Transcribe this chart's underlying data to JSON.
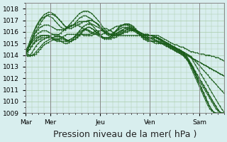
{
  "background_color": "#d8eeee",
  "plot_bg_color": "#d8eeee",
  "grid_color": "#aaccaa",
  "line_color": "#1a5c1a",
  "ylim": [
    1009,
    1018.5
  ],
  "yticks": [
    1009,
    1010,
    1011,
    1012,
    1013,
    1014,
    1015,
    1016,
    1017,
    1018
  ],
  "xlabel": "Pression niveau de la mer( hPa )",
  "xlabel_fontsize": 9,
  "day_labels": [
    "Mar",
    "Mer",
    "Jeu",
    "Ven",
    "Sam"
  ],
  "day_positions": [
    0,
    24,
    72,
    120,
    168
  ],
  "xlim": [
    0,
    192
  ],
  "title": "",
  "lines": [
    [
      1014.2,
      1014.3,
      1014.5,
      1014.8,
      1015.0,
      1015.2,
      1015.3,
      1015.4,
      1015.5,
      1015.5,
      1015.5,
      1015.5,
      1015.5,
      1015.4,
      1015.3,
      1015.2,
      1015.2,
      1015.2,
      1015.2,
      1015.2,
      1015.2,
      1015.3,
      1015.4,
      1015.5,
      1015.6,
      1015.7,
      1015.7,
      1015.8,
      1015.8,
      1015.8,
      1015.8,
      1015.8,
      1015.9,
      1016.0,
      1016.1,
      1016.1,
      1016.1,
      1016.1,
      1016.0,
      1015.9,
      1015.8,
      1015.8,
      1015.7,
      1015.7,
      1015.7,
      1015.7,
      1015.7,
      1015.7,
      1015.7,
      1015.7,
      1015.7,
      1015.7,
      1015.7,
      1015.7,
      1015.7,
      1015.7,
      1015.7,
      1015.7,
      1015.7,
      1015.7,
      1015.7,
      1015.7,
      1015.7,
      1015.7,
      1015.7,
      1015.6,
      1015.5,
      1015.4,
      1015.3,
      1015.2,
      1015.1,
      1015.0,
      1014.9,
      1014.9,
      1014.8,
      1014.7,
      1014.7,
      1014.6,
      1014.5,
      1014.4,
      1014.3,
      1014.3,
      1014.2,
      1014.2,
      1014.1,
      1014.1,
      1014.1,
      1014.0,
      1014.0,
      1014.0,
      1013.9,
      1013.9,
      1013.8,
      1013.8,
      1013.7,
      1013.6,
      1013.5
    ],
    [
      1014.2,
      1014.1,
      1014.0,
      1014.0,
      1014.0,
      1014.1,
      1014.3,
      1014.5,
      1014.7,
      1014.9,
      1015.0,
      1015.1,
      1015.2,
      1015.3,
      1015.3,
      1015.3,
      1015.3,
      1015.2,
      1015.1,
      1015.0,
      1015.0,
      1015.1,
      1015.2,
      1015.4,
      1015.6,
      1015.8,
      1016.0,
      1016.1,
      1016.2,
      1016.2,
      1016.2,
      1016.1,
      1016.0,
      1015.9,
      1015.8,
      1015.7,
      1015.6,
      1015.5,
      1015.4,
      1015.4,
      1015.4,
      1015.4,
      1015.5,
      1015.5,
      1015.6,
      1015.7,
      1015.8,
      1015.9,
      1016.0,
      1016.0,
      1016.1,
      1016.1,
      1016.1,
      1016.1,
      1016.1,
      1016.0,
      1015.9,
      1015.8,
      1015.8,
      1015.8,
      1015.7,
      1015.7,
      1015.6,
      1015.5,
      1015.4,
      1015.3,
      1015.2,
      1015.1,
      1015.0,
      1014.9,
      1014.8,
      1014.7,
      1014.6,
      1014.5,
      1014.4,
      1014.3,
      1014.2,
      1014.1,
      1014.0,
      1013.9,
      1013.8,
      1013.7,
      1013.6,
      1013.5,
      1013.4,
      1013.3,
      1013.2,
      1013.1,
      1013.0,
      1012.9,
      1012.8,
      1012.7,
      1012.6,
      1012.5,
      1012.4,
      1012.3,
      1012.2
    ],
    [
      1014.3,
      1014.5,
      1014.8,
      1015.1,
      1015.3,
      1015.5,
      1015.6,
      1015.7,
      1015.7,
      1015.7,
      1015.7,
      1015.7,
      1015.6,
      1015.5,
      1015.4,
      1015.4,
      1015.4,
      1015.5,
      1015.6,
      1015.7,
      1015.8,
      1015.8,
      1015.8,
      1015.8,
      1015.8,
      1015.8,
      1015.8,
      1015.8,
      1015.7,
      1015.7,
      1015.7,
      1015.7,
      1015.7,
      1015.8,
      1015.9,
      1016.0,
      1016.1,
      1016.2,
      1016.3,
      1016.3,
      1016.2,
      1016.1,
      1016.0,
      1015.9,
      1015.8,
      1015.8,
      1015.8,
      1015.9,
      1016.0,
      1016.0,
      1016.1,
      1016.1,
      1016.1,
      1016.1,
      1016.1,
      1016.0,
      1015.9,
      1015.8,
      1015.8,
      1015.8,
      1015.7,
      1015.7,
      1015.6,
      1015.5,
      1015.4,
      1015.3,
      1015.2,
      1015.1,
      1015.0,
      1014.9,
      1014.8,
      1014.7,
      1014.6,
      1014.5,
      1014.4,
      1014.3,
      1014.2,
      1014.1,
      1014.0,
      1013.9,
      1013.8,
      1013.7,
      1013.6,
      1013.5,
      1013.4,
      1013.3,
      1013.2,
      1013.1,
      1013.0,
      1012.9,
      1012.8,
      1012.7,
      1012.6,
      1012.5,
      1012.4,
      1012.3,
      1012.2
    ],
    [
      1014.1,
      1014.0,
      1013.9,
      1014.0,
      1014.1,
      1014.3,
      1014.5,
      1014.7,
      1014.9,
      1015.1,
      1015.2,
      1015.3,
      1015.4,
      1015.5,
      1015.6,
      1015.6,
      1015.6,
      1015.6,
      1015.5,
      1015.4,
      1015.3,
      1015.2,
      1015.2,
      1015.3,
      1015.4,
      1015.6,
      1015.8,
      1016.0,
      1016.2,
      1016.3,
      1016.4,
      1016.4,
      1016.3,
      1016.2,
      1016.0,
      1015.9,
      1015.7,
      1015.6,
      1015.5,
      1015.5,
      1015.5,
      1015.5,
      1015.6,
      1015.7,
      1015.8,
      1015.9,
      1016.0,
      1016.1,
      1016.1,
      1016.2,
      1016.2,
      1016.2,
      1016.2,
      1016.2,
      1016.1,
      1016.0,
      1015.9,
      1015.8,
      1015.7,
      1015.7,
      1015.7,
      1015.7,
      1015.7,
      1015.6,
      1015.5,
      1015.4,
      1015.3,
      1015.2,
      1015.1,
      1015.0,
      1014.9,
      1014.8,
      1014.7,
      1014.6,
      1014.5,
      1014.4,
      1014.3,
      1014.2,
      1014.1,
      1014.0,
      1013.9,
      1013.7,
      1013.5,
      1013.3,
      1013.1,
      1012.9,
      1012.7,
      1012.5,
      1012.3,
      1012.1,
      1011.9,
      1011.7,
      1011.5,
      1011.3,
      1011.1,
      1010.9,
      1010.7
    ],
    [
      1014.2,
      1014.3,
      1014.5,
      1014.8,
      1015.1,
      1015.3,
      1015.5,
      1015.6,
      1015.7,
      1015.7,
      1015.7,
      1015.7,
      1015.6,
      1015.5,
      1015.4,
      1015.4,
      1015.4,
      1015.4,
      1015.4,
      1015.3,
      1015.2,
      1015.2,
      1015.2,
      1015.3,
      1015.4,
      1015.5,
      1015.7,
      1015.9,
      1016.1,
      1016.3,
      1016.4,
      1016.4,
      1016.3,
      1016.2,
      1016.0,
      1015.8,
      1015.7,
      1015.5,
      1015.5,
      1015.5,
      1015.5,
      1015.6,
      1015.7,
      1015.8,
      1015.9,
      1016.0,
      1016.1,
      1016.2,
      1016.3,
      1016.3,
      1016.3,
      1016.3,
      1016.2,
      1016.1,
      1016.0,
      1015.9,
      1015.8,
      1015.7,
      1015.6,
      1015.5,
      1015.5,
      1015.5,
      1015.5,
      1015.5,
      1015.5,
      1015.4,
      1015.3,
      1015.2,
      1015.1,
      1015.0,
      1014.9,
      1014.8,
      1014.7,
      1014.6,
      1014.5,
      1014.4,
      1014.3,
      1014.2,
      1014.1,
      1014.0,
      1013.8,
      1013.5,
      1013.2,
      1012.9,
      1012.6,
      1012.3,
      1012.0,
      1011.7,
      1011.4,
      1011.1,
      1010.8,
      1010.5,
      1010.2,
      1009.9,
      1009.6,
      1009.3,
      1009.1
    ],
    [
      1014.0,
      1013.9,
      1014.0,
      1014.2,
      1014.5,
      1014.8,
      1015.0,
      1015.2,
      1015.3,
      1015.4,
      1015.5,
      1015.6,
      1015.7,
      1015.8,
      1015.8,
      1015.8,
      1015.7,
      1015.6,
      1015.5,
      1015.4,
      1015.3,
      1015.3,
      1015.4,
      1015.5,
      1015.7,
      1015.9,
      1016.1,
      1016.3,
      1016.5,
      1016.6,
      1016.7,
      1016.7,
      1016.6,
      1016.4,
      1016.2,
      1016.0,
      1015.8,
      1015.6,
      1015.5,
      1015.5,
      1015.5,
      1015.6,
      1015.7,
      1015.8,
      1015.9,
      1016.0,
      1016.1,
      1016.2,
      1016.3,
      1016.3,
      1016.3,
      1016.2,
      1016.1,
      1016.0,
      1015.9,
      1015.8,
      1015.7,
      1015.6,
      1015.5,
      1015.5,
      1015.5,
      1015.5,
      1015.4,
      1015.3,
      1015.2,
      1015.1,
      1015.0,
      1014.9,
      1014.8,
      1014.7,
      1014.6,
      1014.5,
      1014.4,
      1014.3,
      1014.2,
      1014.1,
      1014.0,
      1013.9,
      1013.7,
      1013.5,
      1013.2,
      1012.9,
      1012.6,
      1012.3,
      1012.0,
      1011.7,
      1011.4,
      1011.1,
      1010.8,
      1010.5,
      1010.2,
      1009.9,
      1009.6,
      1009.3,
      1009.1,
      1009.0,
      1009.0
    ],
    [
      1014.3,
      1014.5,
      1014.8,
      1015.2,
      1015.5,
      1015.7,
      1015.9,
      1016.0,
      1016.1,
      1016.1,
      1016.1,
      1016.0,
      1015.9,
      1015.8,
      1015.7,
      1015.7,
      1015.8,
      1015.9,
      1016.1,
      1016.2,
      1016.4,
      1016.5,
      1016.6,
      1016.6,
      1016.6,
      1016.6,
      1016.5,
      1016.4,
      1016.3,
      1016.2,
      1016.1,
      1016.0,
      1015.9,
      1015.8,
      1015.8,
      1015.8,
      1015.8,
      1015.8,
      1015.9,
      1016.0,
      1016.1,
      1016.2,
      1016.3,
      1016.4,
      1016.5,
      1016.5,
      1016.6,
      1016.6,
      1016.6,
      1016.6,
      1016.5,
      1016.4,
      1016.3,
      1016.1,
      1016.0,
      1015.8,
      1015.7,
      1015.6,
      1015.5,
      1015.4,
      1015.4,
      1015.5,
      1015.5,
      1015.5,
      1015.5,
      1015.4,
      1015.3,
      1015.2,
      1015.1,
      1015.0,
      1014.9,
      1014.8,
      1014.7,
      1014.6,
      1014.5,
      1014.4,
      1014.3,
      1014.1,
      1013.9,
      1013.6,
      1013.3,
      1013.0,
      1012.6,
      1012.3,
      1012.0,
      1011.7,
      1011.4,
      1011.1,
      1010.8,
      1010.5,
      1010.2,
      1009.9,
      1009.6,
      1009.3,
      1009.1,
      1009.0,
      1009.0
    ],
    [
      1014.4,
      1014.7,
      1015.0,
      1015.4,
      1015.7,
      1016.0,
      1016.2,
      1016.4,
      1016.5,
      1016.6,
      1016.6,
      1016.6,
      1016.5,
      1016.4,
      1016.3,
      1016.2,
      1016.2,
      1016.2,
      1016.2,
      1016.2,
      1016.3,
      1016.4,
      1016.5,
      1016.6,
      1016.7,
      1016.8,
      1016.9,
      1016.9,
      1016.9,
      1016.9,
      1016.9,
      1016.8,
      1016.7,
      1016.6,
      1016.5,
      1016.4,
      1016.3,
      1016.2,
      1016.1,
      1016.0,
      1015.9,
      1015.8,
      1015.7,
      1015.7,
      1015.7,
      1015.8,
      1015.9,
      1016.0,
      1016.1,
      1016.2,
      1016.3,
      1016.3,
      1016.3,
      1016.2,
      1016.1,
      1016.0,
      1015.9,
      1015.8,
      1015.7,
      1015.6,
      1015.5,
      1015.4,
      1015.3,
      1015.2,
      1015.1,
      1015.0,
      1015.0,
      1015.0,
      1015.0,
      1014.9,
      1014.8,
      1014.7,
      1014.6,
      1014.5,
      1014.4,
      1014.3,
      1014.2,
      1014.0,
      1013.8,
      1013.5,
      1013.2,
      1012.9,
      1012.5,
      1012.1,
      1011.8,
      1011.5,
      1011.2,
      1010.9,
      1010.6,
      1010.3,
      1010.0,
      1009.7,
      1009.4,
      1009.2,
      1009.1,
      1009.0,
      1009.0
    ],
    [
      1014.2,
      1014.5,
      1014.9,
      1015.3,
      1015.7,
      1016.1,
      1016.4,
      1016.7,
      1017.0,
      1017.2,
      1017.4,
      1017.5,
      1017.5,
      1017.5,
      1017.4,
      1017.3,
      1017.1,
      1016.9,
      1016.7,
      1016.5,
      1016.4,
      1016.3,
      1016.3,
      1016.4,
      1016.5,
      1016.6,
      1016.7,
      1016.8,
      1016.9,
      1016.9,
      1017.0,
      1017.0,
      1017.0,
      1016.9,
      1016.8,
      1016.7,
      1016.5,
      1016.3,
      1016.1,
      1015.9,
      1015.8,
      1015.8,
      1015.9,
      1016.0,
      1016.1,
      1016.2,
      1016.3,
      1016.4,
      1016.4,
      1016.4,
      1016.4,
      1016.3,
      1016.2,
      1016.1,
      1016.0,
      1015.8,
      1015.7,
      1015.6,
      1015.5,
      1015.4,
      1015.3,
      1015.2,
      1015.1,
      1015.0,
      1015.0,
      1015.0,
      1015.0,
      1015.0,
      1014.9,
      1014.8,
      1014.7,
      1014.6,
      1014.5,
      1014.4,
      1014.3,
      1014.2,
      1014.1,
      1013.9,
      1013.7,
      1013.4,
      1013.1,
      1012.8,
      1012.4,
      1012.0,
      1011.6,
      1011.2,
      1010.8,
      1010.4,
      1010.0,
      1009.6,
      1009.3,
      1009.1,
      1009.0,
      1009.0,
      1009.0,
      1009.0,
      1009.0
    ],
    [
      1014.3,
      1014.7,
      1015.2,
      1015.7,
      1016.1,
      1016.5,
      1016.8,
      1017.1,
      1017.3,
      1017.5,
      1017.6,
      1017.7,
      1017.7,
      1017.6,
      1017.5,
      1017.3,
      1017.1,
      1016.9,
      1016.7,
      1016.5,
      1016.4,
      1016.4,
      1016.5,
      1016.6,
      1016.8,
      1017.0,
      1017.2,
      1017.3,
      1017.4,
      1017.4,
      1017.3,
      1017.2,
      1017.1,
      1016.9,
      1016.8,
      1016.6,
      1016.4,
      1016.2,
      1016.0,
      1015.8,
      1015.7,
      1015.7,
      1015.8,
      1016.0,
      1016.2,
      1016.4,
      1016.5,
      1016.6,
      1016.7,
      1016.7,
      1016.7,
      1016.6,
      1016.5,
      1016.3,
      1016.1,
      1015.9,
      1015.7,
      1015.5,
      1015.4,
      1015.3,
      1015.2,
      1015.2,
      1015.2,
      1015.2,
      1015.2,
      1015.2,
      1015.1,
      1015.0,
      1014.9,
      1014.8,
      1014.7,
      1014.6,
      1014.5,
      1014.4,
      1014.3,
      1014.2,
      1014.1,
      1013.9,
      1013.7,
      1013.4,
      1013.1,
      1012.7,
      1012.3,
      1011.9,
      1011.5,
      1011.1,
      1010.7,
      1010.3,
      1009.9,
      1009.6,
      1009.3,
      1009.1,
      1009.0,
      1009.0,
      1009.0,
      1009.0,
      1009.0
    ],
    [
      1014.0,
      1014.4,
      1014.9,
      1015.4,
      1015.9,
      1016.4,
      1016.7,
      1017.0,
      1017.2,
      1017.3,
      1017.4,
      1017.4,
      1017.3,
      1017.2,
      1017.0,
      1016.8,
      1016.6,
      1016.4,
      1016.3,
      1016.3,
      1016.4,
      1016.6,
      1016.8,
      1017.0,
      1017.2,
      1017.4,
      1017.6,
      1017.7,
      1017.8,
      1017.8,
      1017.8,
      1017.7,
      1017.6,
      1017.4,
      1017.2,
      1017.0,
      1016.8,
      1016.5,
      1016.3,
      1016.1,
      1015.9,
      1015.8,
      1015.8,
      1015.9,
      1016.1,
      1016.3,
      1016.5,
      1016.6,
      1016.7,
      1016.7,
      1016.6,
      1016.5,
      1016.4,
      1016.2,
      1016.0,
      1015.8,
      1015.6,
      1015.4,
      1015.3,
      1015.2,
      1015.2,
      1015.2,
      1015.2,
      1015.2,
      1015.2,
      1015.1,
      1015.0,
      1014.9,
      1014.8,
      1014.7,
      1014.6,
      1014.5,
      1014.4,
      1014.3,
      1014.2,
      1014.1,
      1014.0,
      1013.8,
      1013.6,
      1013.3,
      1012.9,
      1012.5,
      1012.1,
      1011.7,
      1011.3,
      1010.9,
      1010.5,
      1010.1,
      1009.7,
      1009.4,
      1009.2,
      1009.1,
      1009.0,
      1009.0,
      1009.0,
      1009.0,
      1009.0
    ]
  ]
}
